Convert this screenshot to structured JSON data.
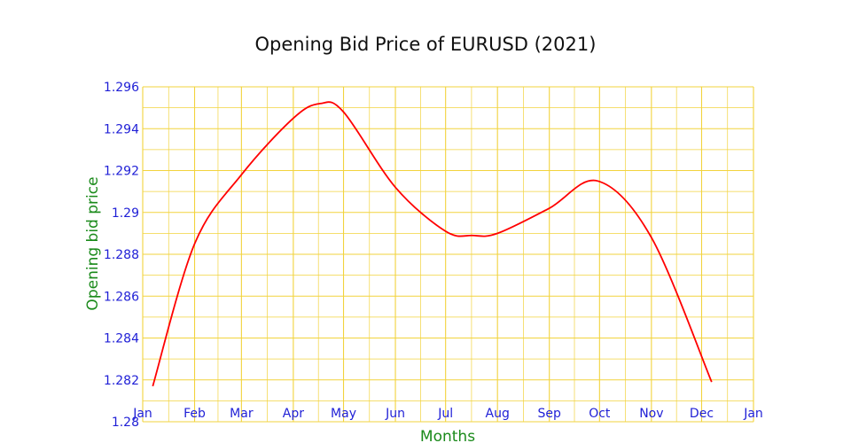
{
  "colors": {
    "grid": "#f2d33d",
    "tick_text": "#1f1fd6",
    "axis_title": "#1a8a1a",
    "line": "#ff0000",
    "background": "#ffffff"
  },
  "chart_data": {
    "type": "line",
    "title": "Opening Bid Price of EURUSD (2021)",
    "xlabel": "Months",
    "ylabel": "Opening bid price",
    "x_ticks": [
      "Jan",
      "Feb",
      "Mar",
      "Apr",
      "May",
      "Jun",
      "Jul",
      "Aug",
      "Sep",
      "Oct",
      "Nov",
      "Dec",
      "Jan"
    ],
    "y_ticks": [
      "1.28",
      "1.282",
      "1.284",
      "1.286",
      "1.288",
      "1.29",
      "1.292",
      "1.294",
      "1.296"
    ],
    "ylim": [
      1.28,
      1.296
    ],
    "xlim": [
      "2021-01-01",
      "2022-01-01"
    ],
    "grid": true,
    "interpolation": "smooth",
    "series": [
      {
        "x": [
          "2021-01-07",
          "2021-02-01",
          "2021-03-01",
          "2021-04-01",
          "2021-04-17",
          "2021-05-01",
          "2021-06-01",
          "2021-07-01",
          "2021-07-17",
          "2021-08-01",
          "2021-09-01",
          "2021-09-30",
          "2021-11-01",
          "2021-12-07"
        ],
        "values": [
          1.2817,
          1.2885,
          1.2918,
          1.2945,
          1.2952,
          1.2948,
          1.2912,
          1.2891,
          1.2889,
          1.289,
          1.2902,
          1.2915,
          1.2888,
          1.2819
        ]
      }
    ]
  }
}
